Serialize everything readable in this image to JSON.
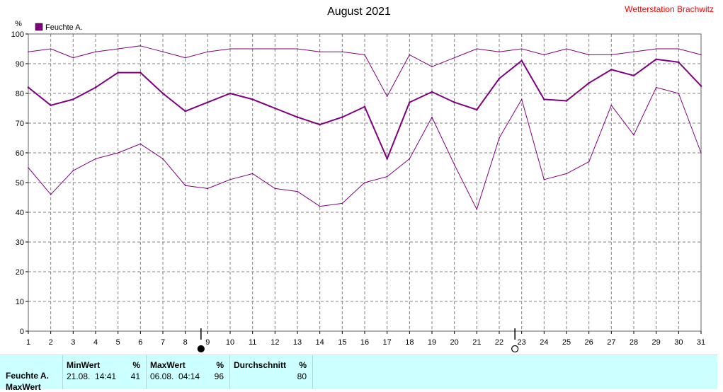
{
  "header": {
    "title": "August 2021",
    "station": "Wetterstation Brachwitz"
  },
  "colors": {
    "series": "#800080",
    "station": "#ff0000",
    "table_bg": "#ccffff"
  },
  "chart_data": {
    "type": "line",
    "title": "August 2021",
    "y_unit": "%",
    "ylim": [
      0,
      100
    ],
    "y_ticks": [
      0,
      10,
      20,
      30,
      40,
      50,
      60,
      70,
      80,
      90,
      100
    ],
    "x_ticks": [
      1,
      2,
      3,
      4,
      5,
      6,
      7,
      8,
      9,
      10,
      11,
      12,
      13,
      14,
      15,
      16,
      17,
      18,
      19,
      20,
      21,
      22,
      23,
      24,
      25,
      26,
      27,
      28,
      29,
      30,
      31
    ],
    "grid": true,
    "legend": {
      "position": "top-left",
      "label": "Feuchte A."
    },
    "moon_markers": [
      {
        "phase": "full",
        "x": 8.7
      },
      {
        "phase": "new",
        "x": 22.7
      }
    ],
    "series": [
      {
        "name": "Feuchte A.",
        "role": "average",
        "x": [
          1,
          2,
          3,
          4,
          5,
          6,
          7,
          8,
          9,
          10,
          11,
          12,
          13,
          14,
          15,
          16,
          17,
          18,
          19,
          20,
          21,
          22,
          23,
          24,
          25,
          26,
          27,
          28,
          29,
          30,
          31
        ],
        "values": [
          82,
          76,
          78,
          82,
          87,
          87,
          80,
          74,
          77,
          80,
          78,
          75,
          72,
          69.5,
          72,
          75.5,
          58,
          77,
          80.5,
          77,
          74.5,
          85,
          91,
          78,
          77.5,
          83.5,
          88,
          86,
          91.5,
          90.5,
          82.5
        ]
      },
      {
        "role": "max",
        "x": [
          1,
          2,
          3,
          4,
          5,
          6,
          7,
          8,
          9,
          10,
          11,
          12,
          13,
          14,
          15,
          16,
          17,
          18,
          19,
          20,
          21,
          22,
          23,
          24,
          25,
          26,
          27,
          28,
          29,
          30,
          31
        ],
        "values": [
          94,
          95,
          92,
          94,
          95,
          96,
          94,
          92,
          94,
          95,
          95,
          95,
          95,
          94,
          94,
          93,
          79,
          93,
          89,
          92,
          95,
          94,
          95,
          93,
          95,
          93,
          93,
          94,
          95,
          95,
          93
        ]
      },
      {
        "role": "min",
        "x": [
          1,
          2,
          3,
          4,
          5,
          6,
          7,
          8,
          9,
          10,
          11,
          12,
          13,
          14,
          15,
          16,
          17,
          18,
          19,
          20,
          21,
          22,
          23,
          24,
          25,
          26,
          27,
          28,
          29,
          30,
          31
        ],
        "values": [
          55,
          46,
          54,
          58,
          60,
          63,
          58,
          49,
          48,
          51,
          53,
          48,
          47,
          42,
          43,
          50,
          52,
          58,
          72,
          56,
          41,
          65,
          78,
          51,
          53,
          57,
          76,
          66,
          82,
          80,
          60
        ]
      }
    ]
  },
  "table": {
    "row_label": "Feuchte A.",
    "row_label2": "MaxWert",
    "columns": [
      {
        "header": "MinWert",
        "unit": "%",
        "when": "21.08.  14:41",
        "value": "41"
      },
      {
        "header": "MaxWert",
        "unit": "%",
        "when": "06.08.  04:14",
        "value": "96"
      },
      {
        "header": "Durchschnitt",
        "unit": "%",
        "when": "",
        "value": "80"
      }
    ]
  }
}
